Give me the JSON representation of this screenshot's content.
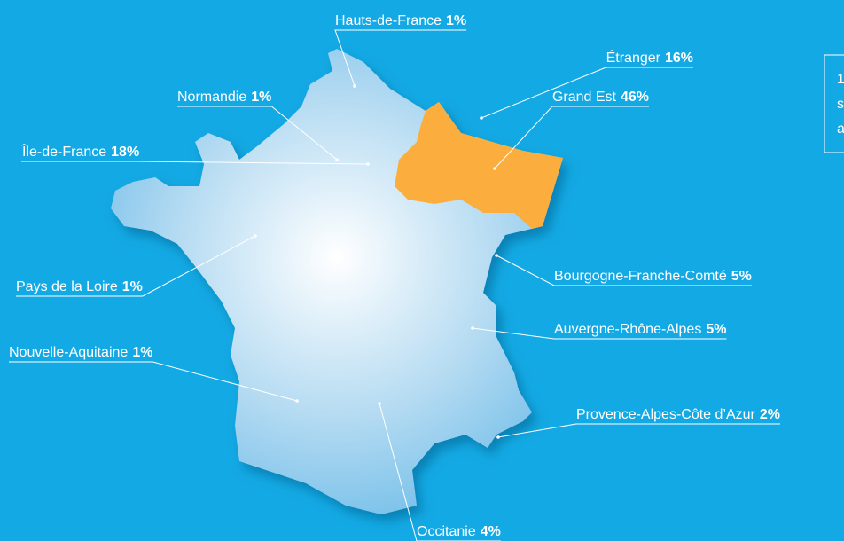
{
  "regions": [
    {
      "name": "Hauts-de-France",
      "share": "1%"
    },
    {
      "name": "Étranger",
      "share": "16%"
    },
    {
      "name": "Grand Est",
      "share": "46%"
    },
    {
      "name": "Normandie",
      "share": "1%"
    },
    {
      "name": "Île-de-France",
      "share": "18%"
    },
    {
      "name": "Pays de la Loire",
      "share": "1%"
    },
    {
      "name": "Nouvelle-Aquitaine",
      "share": "1%"
    },
    {
      "name": "Bourgogne-Franche-Comté",
      "share": "5%"
    },
    {
      "name": "Auvergne-Rhône-Alpes",
      "share": "5%"
    },
    {
      "name": "Provence-Alpes-Côte d’Azur",
      "share": "2%"
    },
    {
      "name": "Occitanie",
      "share": "4%"
    }
  ],
  "side_note": [
    "1",
    "s",
    "a"
  ]
}
